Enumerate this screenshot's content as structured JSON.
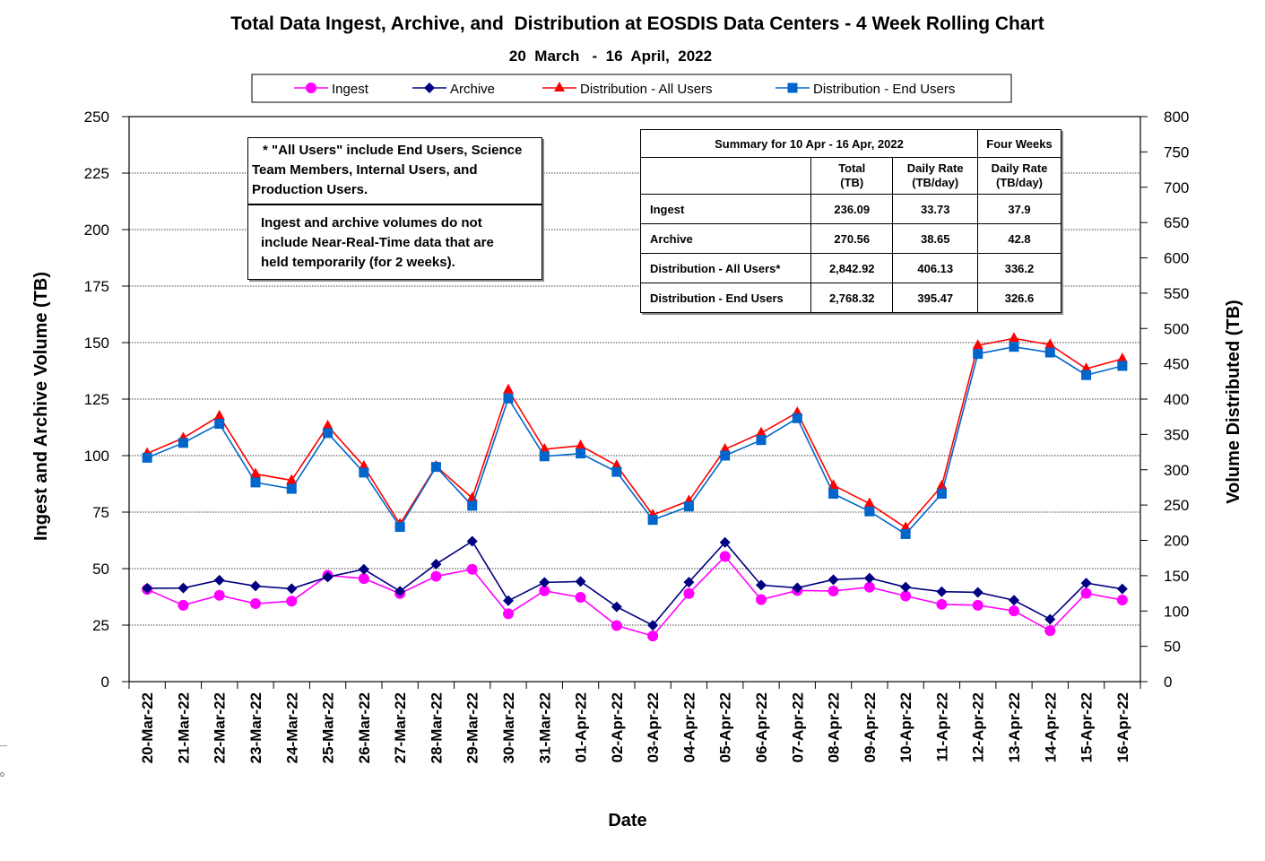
{
  "title": "Total Data Ingest, Archive, and  Distribution at EOSDIS Data Centers - 4 Week Rolling Chart",
  "subtitle": "20  March   -  16  April,  2022",
  "notes": {
    "all_users_line1": "* \"All Users\" include End Users, Science",
    "all_users_line2": "Team Members,  Internal Users, and",
    "all_users_line3": "Production Users.",
    "nrt_line1": "Ingest and archive volumes do not",
    "nrt_line2": "include Near-Real-Time data that are",
    "nrt_line3": "held temporarily (for 2 weeks)."
  },
  "summary": {
    "header": "Summary  for  10  Apr   - 16  Apr,  2022",
    "four_weeks": "Four Weeks",
    "col_total": "Total",
    "col_total_unit": "(TB)",
    "col_daily": "Daily Rate",
    "col_daily_unit": "(TB/day)",
    "col_fw_daily": "Daily Rate",
    "col_fw_daily_unit": "(TB/day)",
    "rows": [
      {
        "label": "Ingest",
        "total": "236.09",
        "daily": "33.73",
        "four_weeks": "37.9"
      },
      {
        "label": "Archive",
        "total": "270.56",
        "daily": "38.65",
        "four_weeks": "42.8"
      },
      {
        "label": "Distribution - All Users*",
        "total": "2,842.92",
        "daily": "406.13",
        "four_weeks": "336.2"
      },
      {
        "label": "Distribution - End Users",
        "total": "2,768.32",
        "daily": "395.47",
        "four_weeks": "326.6"
      }
    ]
  },
  "edge_text": "o",
  "chart_data": {
    "type": "line",
    "title": "Total Data Ingest, Archive, and  Distribution at EOSDIS Data Centers - 4 Week Rolling Chart",
    "subtitle": "20  March   -  16  April,  2022",
    "xlabel": "Date",
    "ylabel": "Ingest and Archive Volume (TB)",
    "y2label": "Volume Distributed (TB)",
    "ylim": [
      0,
      250
    ],
    "y2lim": [
      0,
      800
    ],
    "yticks": [
      0,
      25,
      50,
      75,
      100,
      125,
      150,
      175,
      200,
      225,
      250
    ],
    "y2ticks": [
      0,
      50,
      100,
      150,
      200,
      250,
      300,
      350,
      400,
      450,
      500,
      550,
      600,
      650,
      700,
      750,
      800
    ],
    "grid": true,
    "legend_position": "top-center",
    "categories": [
      "20-Mar-22",
      "21-Mar-22",
      "22-Mar-22",
      "23-Mar-22",
      "24-Mar-22",
      "25-Mar-22",
      "26-Mar-22",
      "27-Mar-22",
      "28-Mar-22",
      "29-Mar-22",
      "30-Mar-22",
      "31-Mar-22",
      "01-Apr-22",
      "02-Apr-22",
      "03-Apr-22",
      "04-Apr-22",
      "05-Apr-22",
      "06-Apr-22",
      "07-Apr-22",
      "08-Apr-22",
      "09-Apr-22",
      "10-Apr-22",
      "11-Apr-22",
      "12-Apr-22",
      "13-Apr-22",
      "14-Apr-22",
      "15-Apr-22",
      "16-Apr-22"
    ],
    "series": [
      {
        "name": "Ingest",
        "axis": "left",
        "color": "#ff00ff",
        "marker": "circle",
        "values": [
          40.8,
          33.8,
          38.2,
          34.5,
          35.6,
          47.0,
          45.6,
          39.0,
          46.6,
          49.7,
          30.0,
          40.2,
          37.3,
          24.8,
          20.2,
          39.0,
          55.4,
          36.3,
          40.3,
          40.1,
          41.8,
          37.9,
          34.2,
          33.8,
          31.3,
          22.5,
          39.1,
          36.1
        ]
      },
      {
        "name": "Archive",
        "axis": "left",
        "color": "#000080",
        "marker": "diamond",
        "values": [
          41.3,
          41.4,
          44.9,
          42.3,
          41.1,
          46.3,
          49.7,
          40.0,
          52.0,
          62.1,
          35.8,
          43.9,
          44.3,
          33.1,
          24.9,
          44.0,
          61.6,
          42.7,
          41.5,
          45.1,
          45.8,
          41.8,
          39.8,
          39.5,
          36.0,
          27.6,
          43.6,
          41.0
        ]
      },
      {
        "name": "Distribution - All Users",
        "axis": "right",
        "color": "#ff0000",
        "marker": "triangle",
        "values": [
          323,
          345,
          376,
          294,
          285,
          362,
          305,
          223,
          305,
          260,
          413,
          329,
          334,
          306,
          236,
          256,
          329,
          352,
          381,
          278,
          252,
          218,
          277,
          476,
          486,
          477,
          443,
          457
        ]
      },
      {
        "name": "Distribution - End Users",
        "axis": "right",
        "color": "#0066cc",
        "marker": "square",
        "values": [
          317,
          338,
          365,
          282,
          273,
          352,
          296,
          219,
          304,
          249,
          401,
          319,
          323,
          297,
          229,
          248,
          320,
          342,
          373,
          266,
          241,
          209,
          266,
          464,
          474,
          466,
          434,
          447
        ]
      }
    ]
  }
}
